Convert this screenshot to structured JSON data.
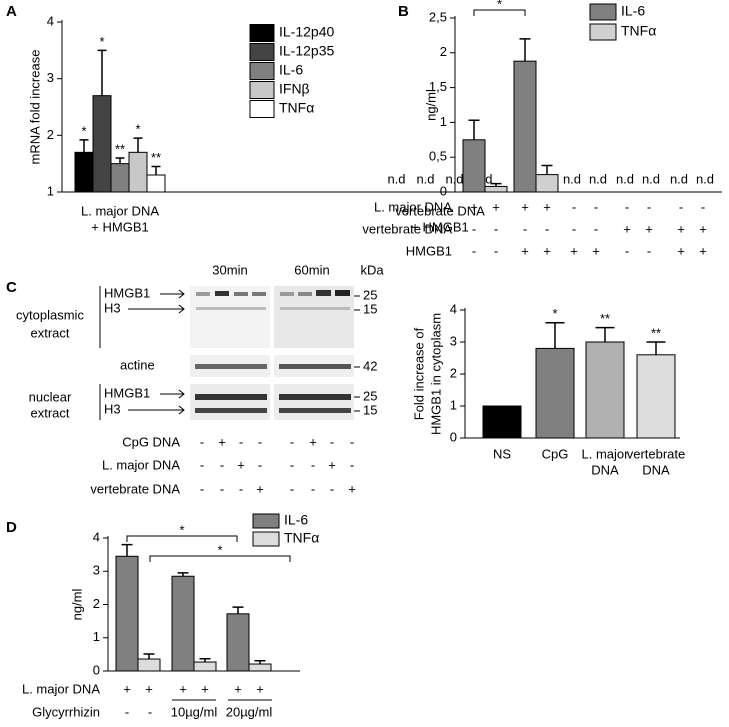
{
  "chart_data": [
    {
      "type": "bar",
      "panel_label": "A",
      "y_label": "mRNA fold increase",
      "categories": [
        [
          "L. major DNA",
          "+ HMGB1"
        ],
        [
          "vertebrate DNA",
          "+ HMGB1"
        ]
      ],
      "series": [
        {
          "name": "IL-12p40",
          "color": "#000000",
          "values": [
            1.7,
            null
          ],
          "errors": [
            0.22,
            null
          ],
          "annotations": [
            "*",
            "n.d"
          ]
        },
        {
          "name": "IL-12p35",
          "color": "#444444",
          "values": [
            2.7,
            null
          ],
          "errors": [
            0.8,
            null
          ],
          "annotations": [
            "*",
            "n.d"
          ]
        },
        {
          "name": "IL-6",
          "color": "#808080",
          "values": [
            1.5,
            null
          ],
          "errors": [
            0.1,
            null
          ],
          "annotations": [
            "**",
            "n.d"
          ]
        },
        {
          "name": "IFNβ",
          "color": "#c8c8c8",
          "values": [
            1.7,
            null
          ],
          "errors": [
            0.25,
            null
          ],
          "annotations": [
            "*",
            "n.d"
          ]
        },
        {
          "name": "TNFα",
          "color": "#ffffff",
          "values": [
            1.3,
            null
          ],
          "errors": [
            0.15,
            null
          ],
          "annotations": [
            "**",
            null
          ]
        }
      ],
      "ylim": [
        1,
        4
      ],
      "yticks": [
        1,
        2,
        3,
        4
      ]
    },
    {
      "type": "bar",
      "panel_label": "B",
      "y_label": "ng/ml",
      "categories": [
        null,
        null,
        null,
        null,
        null
      ],
      "series": [
        {
          "name": "IL-6",
          "color": "#808080",
          "values": [
            0.75,
            1.88,
            null,
            null,
            null
          ],
          "errors": [
            0.28,
            0.32,
            null,
            null,
            null
          ],
          "annotations": [
            null,
            null,
            "n.d",
            "n.d",
            "n.d"
          ]
        },
        {
          "name": "TNFα",
          "color": "#d0d0d0",
          "values": [
            0.08,
            0.25,
            null,
            null,
            null
          ],
          "errors": [
            0.04,
            0.13,
            null,
            null,
            null
          ],
          "annotations": [
            null,
            null,
            "n.d",
            "n.d",
            "n.d"
          ]
        }
      ],
      "significance": [
        "*"
      ],
      "conditions": [
        {
          "label": "L. major DNA",
          "cells": [
            "+",
            "+",
            "+",
            "+",
            "-",
            "-",
            "-",
            "-",
            "-",
            "-"
          ]
        },
        {
          "label": "vertebrate DNA",
          "cells": [
            "-",
            "-",
            "-",
            "-",
            "-",
            "-",
            "+",
            "+",
            "+",
            "+"
          ]
        },
        {
          "label": "HMGB1",
          "cells": [
            "-",
            "-",
            "+",
            "+",
            "+",
            "+",
            "-",
            "-",
            "+",
            "+"
          ]
        }
      ],
      "ylim": [
        0,
        2.5
      ],
      "yticks": [
        0,
        {
          "value": 0.5,
          "label": "0,5"
        },
        1,
        {
          "value": 1.5,
          "label": "1,5"
        },
        2,
        {
          "value": 2.5,
          "label": "2,5"
        }
      ]
    },
    {
      "type": "bar",
      "y_label": [
        "Fold increase of",
        "HMGB1 in cytoplasm"
      ],
      "categories": [
        [
          "NS"
        ],
        [
          "CpG"
        ],
        [
          "L. major",
          "DNA"
        ],
        [
          "vertebrate",
          "DNA"
        ]
      ],
      "values": [
        1,
        2.8,
        3,
        2.6
      ],
      "errors": [
        null,
        0.8,
        0.45,
        0.4
      ],
      "annotations": [
        null,
        "*",
        "**",
        "**"
      ],
      "colors": [
        "#000000",
        "#808080",
        "#b0b0b0",
        "#dcdcdc"
      ],
      "ylim": [
        0,
        4
      ],
      "yticks": [
        0,
        1,
        2,
        3,
        4
      ]
    },
    {
      "type": "bar",
      "panel_label": "D",
      "y_label": "ng/ml",
      "categories": [
        null,
        null,
        null
      ],
      "series": [
        {
          "name": "IL-6",
          "color": "#808080",
          "values": [
            3.45,
            2.85,
            1.72
          ],
          "errors": [
            0.35,
            0.1,
            0.2
          ],
          "annotations": [
            null,
            null,
            null
          ]
        },
        {
          "name": "TNFα",
          "color": "#dcdcdc",
          "values": [
            0.36,
            0.27,
            0.21
          ],
          "errors": [
            0.15,
            0.1,
            0.1
          ],
          "annotations": [
            null,
            null,
            null
          ]
        }
      ],
      "significance": [
        "*",
        "*"
      ],
      "conditions": [
        {
          "label": "L. major DNA",
          "cells": [
            "+",
            "+",
            "+",
            "+",
            "+",
            "+"
          ]
        },
        {
          "label": "Glycyrrhizin",
          "cells": [
            "-",
            "-",
            "10µg/ml",
            "20µg/ml"
          ]
        }
      ],
      "ylim": [
        0,
        4
      ],
      "yticks": [
        0,
        1,
        2,
        3,
        4
      ]
    }
  ],
  "blot": {
    "panel_label": "C",
    "times": [
      "30min",
      "60min"
    ],
    "unit": "kDa",
    "fractions": [
      {
        "name": [
          "cytoplasmic",
          "extract"
        ],
        "bands": [
          "HMGB1",
          "H3"
        ]
      },
      {
        "name": [
          "nuclear",
          "extract"
        ],
        "bands": [
          "HMGB1",
          "H3"
        ]
      }
    ],
    "loading_control": "actine",
    "markers": [
      25,
      15,
      42,
      25,
      15
    ],
    "treatments": [
      {
        "label": "CpG DNA",
        "cells": [
          "-",
          "+",
          "-",
          "-",
          "-",
          "+",
          "-",
          "-"
        ]
      },
      {
        "label": "L. major DNA",
        "cells": [
          "-",
          "-",
          "+",
          "-",
          "-",
          "-",
          "+",
          "-"
        ]
      },
      {
        "label": "vertebrate DNA",
        "cells": [
          "-",
          "-",
          "-",
          "+",
          "-",
          "-",
          "-",
          "+"
        ]
      }
    ]
  }
}
